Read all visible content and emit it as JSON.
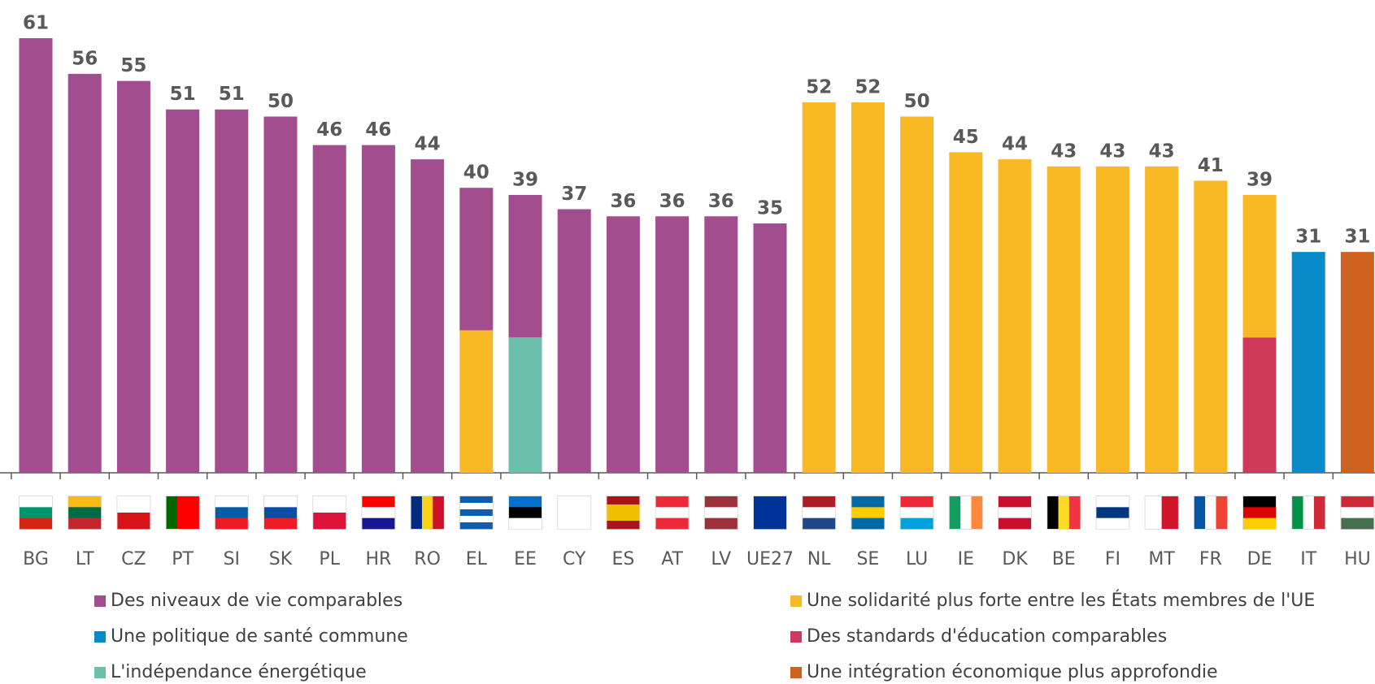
{
  "chart_data": {
    "type": "bar",
    "categories": [
      "BG",
      "LT",
      "CZ",
      "PT",
      "SI",
      "SK",
      "PL",
      "HR",
      "RO",
      "EL",
      "EE",
      "CY",
      "ES",
      "AT",
      "LV",
      "UE27",
      "NL",
      "SE",
      "LU",
      "IE",
      "DK",
      "BE",
      "FI",
      "MT",
      "FR",
      "DE",
      "IT",
      "HU"
    ],
    "totals": [
      61,
      56,
      55,
      51,
      51,
      50,
      46,
      46,
      44,
      40,
      39,
      37,
      36,
      36,
      36,
      35,
      52,
      52,
      50,
      45,
      44,
      43,
      43,
      43,
      41,
      39,
      31,
      31
    ],
    "series": [
      {
        "name": "Des standards d'éducation comparables",
        "color": "#cf3a5a",
        "values": [
          null,
          null,
          null,
          null,
          null,
          null,
          null,
          null,
          null,
          null,
          null,
          null,
          null,
          null,
          null,
          null,
          null,
          null,
          null,
          null,
          null,
          null,
          null,
          null,
          null,
          19,
          null,
          null
        ]
      },
      {
        "name": "L'indépendance énergétique",
        "color": "#6cbfab",
        "values": [
          null,
          null,
          null,
          null,
          null,
          null,
          null,
          null,
          null,
          null,
          19,
          null,
          null,
          null,
          null,
          null,
          null,
          null,
          null,
          null,
          null,
          null,
          null,
          null,
          null,
          null,
          null,
          null
        ]
      },
      {
        "name": "Une solidarité plus forte entre les États membres de l'UE",
        "color": "#f9b924",
        "values": [
          null,
          null,
          null,
          null,
          null,
          null,
          null,
          null,
          null,
          20,
          null,
          null,
          null,
          null,
          null,
          null,
          52,
          52,
          50,
          45,
          44,
          43,
          43,
          43,
          41,
          20,
          null,
          null
        ]
      },
      {
        "name": "Des niveaux de vie comparables",
        "color": "#a24d8e",
        "values": [
          61,
          56,
          55,
          51,
          51,
          50,
          46,
          46,
          44,
          20,
          20,
          37,
          36,
          36,
          36,
          35,
          null,
          null,
          null,
          null,
          null,
          null,
          null,
          null,
          null,
          null,
          null,
          null
        ]
      },
      {
        "name": "Une politique de santé commune",
        "color": "#0a8bc9",
        "values": [
          null,
          null,
          null,
          null,
          null,
          null,
          null,
          null,
          null,
          null,
          null,
          null,
          null,
          null,
          null,
          null,
          null,
          null,
          null,
          null,
          null,
          null,
          null,
          null,
          null,
          null,
          31,
          null
        ]
      },
      {
        "name": "Une intégration économique plus approfondie",
        "color": "#d0621f",
        "values": [
          null,
          null,
          null,
          null,
          null,
          null,
          null,
          null,
          null,
          null,
          null,
          null,
          null,
          null,
          null,
          null,
          null,
          null,
          null,
          null,
          null,
          null,
          null,
          null,
          null,
          null,
          null,
          31
        ]
      }
    ]
  }
}
